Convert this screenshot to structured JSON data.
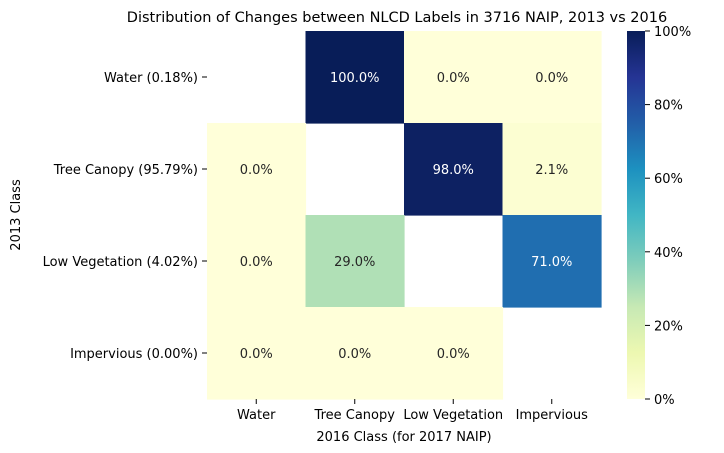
{
  "chart_data": {
    "type": "heatmap",
    "title": "Distribution of Changes between NLCD Labels in 3716 NAIP, 2013 vs 2016",
    "xlabel": "2016 Class (for 2017 NAIP)",
    "ylabel": "2013 Class",
    "x_categories": [
      "Water",
      "Tree Canopy",
      "Low Vegetation",
      "Impervious"
    ],
    "y_categories": [
      "Water (0.18%)",
      "Tree Canopy (95.79%)",
      "Low Vegetation (4.02%)",
      "Impervious (0.00%)"
    ],
    "values": [
      [
        null,
        100.0,
        0.0,
        0.0
      ],
      [
        0.0,
        null,
        98.0,
        2.1
      ],
      [
        0.0,
        29.0,
        null,
        71.0
      ],
      [
        0.0,
        0.0,
        0.0,
        null
      ]
    ],
    "cell_labels": [
      [
        "",
        "100.0%",
        "0.0%",
        "0.0%"
      ],
      [
        "0.0%",
        "",
        "98.0%",
        "2.1%"
      ],
      [
        "0.0%",
        "29.0%",
        "",
        "71.0%"
      ],
      [
        "0.0%",
        "0.0%",
        "0.0%",
        ""
      ]
    ],
    "colorbar": {
      "colormap": "YlGnBu",
      "range": [
        0,
        100
      ],
      "ticks": [
        0,
        20,
        40,
        60,
        80,
        100
      ],
      "tick_labels": [
        "0%",
        "20%",
        "40%",
        "60%",
        "80%",
        "100%"
      ]
    }
  }
}
